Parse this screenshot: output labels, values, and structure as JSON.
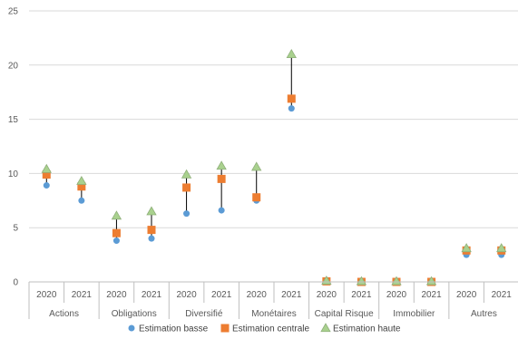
{
  "chart_data": {
    "type": "scatter",
    "title": "",
    "xlabel": "",
    "ylabel": "",
    "ylim": [
      0,
      25
    ],
    "yticks": [
      0,
      5,
      10,
      15,
      20,
      25
    ],
    "grid": "horizontal",
    "legend_position": "bottom",
    "groups": [
      {
        "label": "Actions",
        "years": [
          "2020",
          "2021"
        ]
      },
      {
        "label": "Obligations",
        "years": [
          "2020",
          "2021"
        ]
      },
      {
        "label": "Diversifié",
        "years": [
          "2020",
          "2021"
        ]
      },
      {
        "label": "Monétaires",
        "years": [
          "2020",
          "2021"
        ]
      },
      {
        "label": "Capital Risque",
        "years": [
          "2020",
          "2021"
        ]
      },
      {
        "label": "Immobilier",
        "years": [
          "2020",
          "2021"
        ]
      },
      {
        "label": "Autres",
        "years": [
          "2020",
          "2021"
        ]
      }
    ],
    "series": [
      {
        "name": "Estimation basse",
        "color": "#5B9BD5",
        "marker": "circle",
        "values": [
          8.9,
          7.5,
          3.8,
          4.0,
          6.3,
          6.6,
          7.5,
          16.0,
          0.0,
          0.0,
          0.0,
          0.0,
          2.5,
          2.5
        ]
      },
      {
        "name": "Estimation centrale",
        "color": "#ED7D31",
        "marker": "square",
        "values": [
          9.9,
          8.8,
          4.5,
          4.8,
          8.7,
          9.5,
          7.8,
          16.9,
          0.05,
          0.0,
          0.0,
          0.0,
          2.9,
          2.9
        ]
      },
      {
        "name": "Estimation haute",
        "color": "#A9D18E",
        "marker": "triangle",
        "values": [
          10.4,
          9.3,
          6.1,
          6.5,
          9.9,
          10.7,
          10.6,
          21.0,
          0.1,
          0.05,
          0.05,
          0.05,
          3.1,
          3.1
        ]
      }
    ]
  }
}
